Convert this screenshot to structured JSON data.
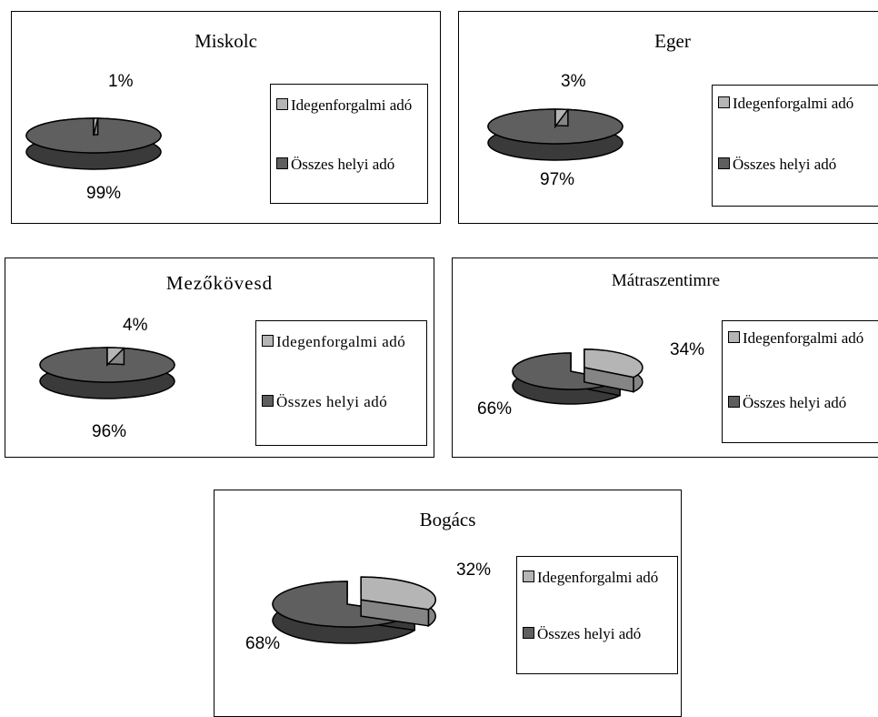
{
  "chart_data": [
    {
      "type": "pie",
      "title": "Miskolc",
      "categories": [
        "Idegenforgalmi adó",
        "Összes helyi adó"
      ],
      "values": [
        1,
        99
      ],
      "labels": [
        "1%",
        "99%"
      ],
      "legend": "right"
    },
    {
      "type": "pie",
      "title": "Eger",
      "categories": [
        "Idegenforgalmi adó",
        "Összes helyi adó"
      ],
      "values": [
        3,
        97
      ],
      "labels": [
        "3%",
        "97%"
      ],
      "legend": "right"
    },
    {
      "type": "pie",
      "title": "Mezőkövesd",
      "categories": [
        "Idegenforgalmi adó",
        "Összes helyi adó"
      ],
      "values": [
        4,
        96
      ],
      "labels": [
        "4%",
        "96%"
      ],
      "legend": "right"
    },
    {
      "type": "pie",
      "title": "Mátraszentimre",
      "categories": [
        "Idegenforgalmi adó",
        "Összes helyi adó"
      ],
      "values": [
        34,
        66
      ],
      "labels": [
        "34%",
        "66%"
      ],
      "legend": "right"
    },
    {
      "type": "pie",
      "title": "Bogács",
      "categories": [
        "Idegenforgalmi adó",
        "Összes helyi adó"
      ],
      "values": [
        32,
        68
      ],
      "labels": [
        "32%",
        "68%"
      ],
      "legend": "right"
    }
  ],
  "legend": {
    "item1": "Idegenforgalmi adó",
    "item2": "Összes helyi adó"
  },
  "colors": {
    "idegenforgalmi_top": "#b5b5b5",
    "idegenforgalmi_side": "#858585",
    "osszes_top": "#5f5f5f",
    "osszes_side": "#3a3a3a",
    "outline": "#000000"
  }
}
